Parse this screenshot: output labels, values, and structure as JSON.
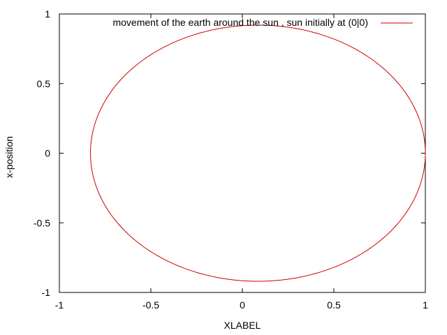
{
  "chart_data": {
    "type": "line",
    "title": "",
    "xlabel": "XLABEL",
    "ylabel": "x-position",
    "xlim": [
      -1,
      1
    ],
    "ylim": [
      -1,
      1
    ],
    "xticks": [
      "-1",
      "-0.5",
      "0",
      "0.5",
      "1"
    ],
    "yticks": [
      "-1",
      "-0.5",
      "0",
      "0.5",
      "1"
    ],
    "grid": false,
    "legend_position": "top-right",
    "series": [
      {
        "name": "movement of the earth around the sun , sun initially at (0|0)",
        "color": "#cc0000",
        "shape": "ellipse",
        "center": [
          0.09,
          0.0
        ],
        "x_range": [
          -0.83,
          1.0
        ],
        "y_range": [
          -0.92,
          0.92
        ]
      }
    ]
  }
}
